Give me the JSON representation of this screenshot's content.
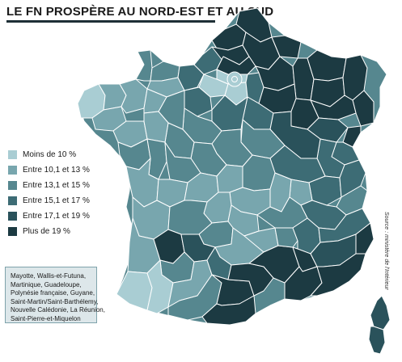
{
  "title": "LE FN PROSPÈRE AU NORD-EST ET AU SUD",
  "legend": {
    "items": [
      {
        "label": "Moins de 10 %",
        "color": "#a9cdd3"
      },
      {
        "label": "Entre 10,1 et 13 %",
        "color": "#78a6ae"
      },
      {
        "label": "Entre 13,1 et 15 %",
        "color": "#56878f"
      },
      {
        "label": "Entre 15,1 et 17 %",
        "color": "#3d6c75"
      },
      {
        "label": "Entre 17,1 et 19 %",
        "color": "#2a525b"
      },
      {
        "label": "Plus de 19 %",
        "color": "#1c3a42"
      }
    ]
  },
  "overseas_note": {
    "lines": [
      "Mayotte, Wallis-et-Futuna,",
      "Martinique, Guadeloupe,",
      "Polynésie française, Guyane,",
      "Saint-Martin/Saint-Barthélemy,",
      "Nouvelle Calédonie, La Réunion,",
      "Saint-Pierre-et-Miquelon"
    ]
  },
  "source": "Source : ministère de l'Intérieur",
  "colors": {
    "border": "#ffffff",
    "title_rule": "#1e2f36"
  }
}
